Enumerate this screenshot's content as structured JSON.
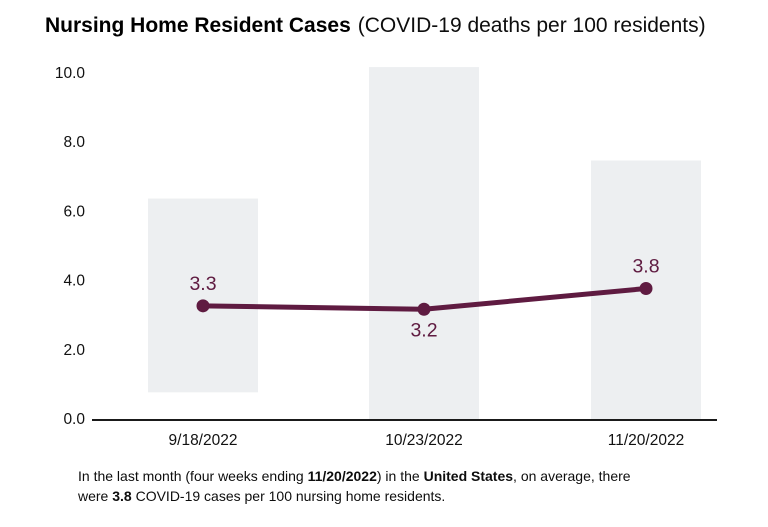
{
  "page": {
    "background": "#ffffff"
  },
  "chart_data": {
    "type": "line",
    "title": "Nursing Home Resident Cases",
    "subtitle": "(COVID-19 deaths per 100 residents)",
    "categories": [
      "9/18/2022",
      "10/23/2022",
      "11/20/2022"
    ],
    "series": [
      {
        "name": "covid-19-cases-per-100-residents",
        "type": "line",
        "values": [
          3.3,
          3.2,
          3.8
        ],
        "point_labels": [
          "3.3",
          "3.2",
          "3.8"
        ],
        "label_placement": [
          "above",
          "below",
          "above"
        ],
        "color": "#5f1b41"
      },
      {
        "name": "background-range-bars",
        "type": "bar",
        "ranges": [
          [
            0.8,
            6.4
          ],
          [
            0,
            10.2
          ],
          [
            0,
            7.5
          ]
        ],
        "color": "#edeff1"
      }
    ],
    "ylim": [
      0,
      10.2
    ],
    "yticks": [
      0,
      2,
      4,
      6,
      8,
      10
    ],
    "ytick_labels": [
      "0.0",
      "2.0",
      "4.0",
      "6.0",
      "8.0",
      "10.0"
    ],
    "xlabel": "",
    "ylabel": "",
    "grid": false,
    "legend": "none",
    "axis_color": "#1a1a1a",
    "tick_label_color": "#111111"
  },
  "caption": {
    "lines": [
      [
        {
          "text": "In the last month (four weeks ending ",
          "bold": false
        },
        {
          "text": "11/20/2022",
          "bold": true
        },
        {
          "text": ") in the ",
          "bold": false
        },
        {
          "text": "United States",
          "bold": true
        },
        {
          "text": ", on average, there",
          "bold": false
        }
      ],
      [
        {
          "text": "were ",
          "bold": false
        },
        {
          "text": "3.8",
          "bold": true
        },
        {
          "text": " COVID-19 cases per 100 nursing home residents.",
          "bold": false
        }
      ]
    ]
  }
}
